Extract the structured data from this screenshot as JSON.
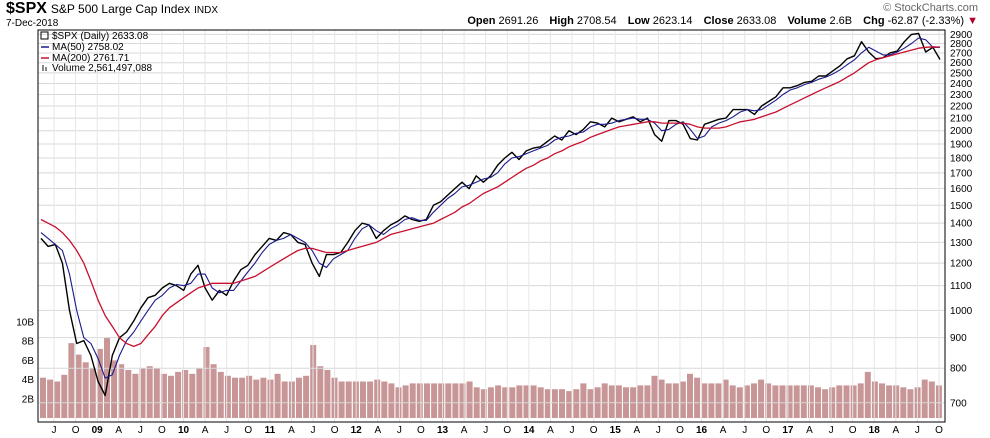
{
  "header": {
    "ticker": "$SPX",
    "description": "S&P 500 Large Cap Index",
    "exchange": "INDX",
    "date": "7-Dec-2018",
    "brand": "© StockCharts.com",
    "open_label": "Open",
    "open": "2691.26",
    "high_label": "High",
    "high": "2708.54",
    "low_label": "Low",
    "low": "2623.14",
    "close_label": "Close",
    "close": "2633.08",
    "volume_label": "Volume",
    "volume": "2.6B",
    "chg_label": "Chg",
    "chg": "-62.87 (-2.33%)"
  },
  "legend": {
    "price": "$SPX (Daily) 2633.08",
    "ma50": "MA(50) 2758.02",
    "ma200": "MA(200) 2761.71",
    "volume": "Volume 2,561,497,088"
  },
  "colors": {
    "price": "#000000",
    "ma50": "#1a1a8c",
    "ma200": "#c8102e",
    "volume": "#b57373",
    "down": "#b0002a"
  },
  "chart_data": {
    "type": "line",
    "title": "$SPX S&P 500 Large Cap Index",
    "scale": "log",
    "ylim": [
      650,
      2950
    ],
    "y_ticks": [
      700,
      800,
      900,
      1000,
      1100,
      1200,
      1300,
      1400,
      1500,
      1600,
      1700,
      1800,
      1900,
      2000,
      2100,
      2200,
      2300,
      2400,
      2500,
      2600,
      2700,
      2800,
      2900
    ],
    "x_ticks": [
      "J",
      "O",
      "09",
      "A",
      "J",
      "O",
      "10",
      "A",
      "J",
      "O",
      "11",
      "A",
      "J",
      "O",
      "12",
      "A",
      "J",
      "O",
      "13",
      "A",
      "J",
      "O",
      "14",
      "A",
      "J",
      "O",
      "15",
      "A",
      "J",
      "O",
      "16",
      "A",
      "J",
      "O",
      "17",
      "A",
      "J",
      "O",
      "18",
      "A",
      "J",
      "O"
    ],
    "x": [
      "2008-06",
      "2008-07",
      "2008-08",
      "2008-09",
      "2008-10",
      "2008-11",
      "2008-12",
      "2009-01",
      "2009-02",
      "2009-03",
      "2009-04",
      "2009-05",
      "2009-06",
      "2009-07",
      "2009-08",
      "2009-09",
      "2009-10",
      "2009-11",
      "2009-12",
      "2010-01",
      "2010-02",
      "2010-03",
      "2010-04",
      "2010-05",
      "2010-06",
      "2010-07",
      "2010-08",
      "2010-09",
      "2010-10",
      "2010-11",
      "2010-12",
      "2011-01",
      "2011-02",
      "2011-03",
      "2011-04",
      "2011-05",
      "2011-06",
      "2011-07",
      "2011-08",
      "2011-09",
      "2011-10",
      "2011-11",
      "2011-12",
      "2012-01",
      "2012-02",
      "2012-03",
      "2012-04",
      "2012-05",
      "2012-06",
      "2012-07",
      "2012-08",
      "2012-09",
      "2012-10",
      "2012-11",
      "2012-12",
      "2013-01",
      "2013-02",
      "2013-03",
      "2013-04",
      "2013-05",
      "2013-06",
      "2013-07",
      "2013-08",
      "2013-09",
      "2013-10",
      "2013-11",
      "2013-12",
      "2014-01",
      "2014-02",
      "2014-03",
      "2014-04",
      "2014-05",
      "2014-06",
      "2014-07",
      "2014-08",
      "2014-09",
      "2014-10",
      "2014-11",
      "2014-12",
      "2015-01",
      "2015-02",
      "2015-03",
      "2015-04",
      "2015-05",
      "2015-06",
      "2015-07",
      "2015-08",
      "2015-09",
      "2015-10",
      "2015-11",
      "2015-12",
      "2016-01",
      "2016-02",
      "2016-03",
      "2016-04",
      "2016-05",
      "2016-06",
      "2016-07",
      "2016-08",
      "2016-09",
      "2016-10",
      "2016-11",
      "2016-12",
      "2017-01",
      "2017-02",
      "2017-03",
      "2017-04",
      "2017-05",
      "2017-06",
      "2017-07",
      "2017-08",
      "2017-09",
      "2017-10",
      "2017-11",
      "2017-12",
      "2018-01",
      "2018-02",
      "2018-03",
      "2018-04",
      "2018-05",
      "2018-06",
      "2018-07",
      "2018-08",
      "2018-09",
      "2018-10",
      "2018-11",
      "2018-12"
    ],
    "series": [
      {
        "name": "$SPX (Daily)",
        "values": [
          1320,
          1280,
          1290,
          1200,
          1000,
          880,
          890,
          840,
          760,
          720,
          840,
          900,
          920,
          960,
          1010,
          1050,
          1060,
          1090,
          1110,
          1100,
          1080,
          1150,
          1190,
          1090,
          1040,
          1080,
          1060,
          1120,
          1170,
          1190,
          1240,
          1280,
          1320,
          1310,
          1350,
          1340,
          1300,
          1290,
          1200,
          1140,
          1240,
          1240,
          1250,
          1300,
          1360,
          1400,
          1390,
          1320,
          1360,
          1390,
          1410,
          1440,
          1420,
          1410,
          1420,
          1500,
          1520,
          1560,
          1600,
          1640,
          1600,
          1680,
          1640,
          1680,
          1750,
          1800,
          1840,
          1790,
          1850,
          1870,
          1880,
          1920,
          1960,
          1930,
          2000,
          1970,
          2010,
          2070,
          2060,
          2030,
          2100,
          2070,
          2090,
          2110,
          2070,
          2100,
          1970,
          1920,
          2080,
          2080,
          2050,
          1940,
          1930,
          2050,
          2070,
          2090,
          2100,
          2170,
          2170,
          2170,
          2130,
          2200,
          2240,
          2280,
          2360,
          2360,
          2380,
          2410,
          2420,
          2470,
          2470,
          2520,
          2570,
          2640,
          2670,
          2820,
          2710,
          2640,
          2650,
          2700,
          2720,
          2820,
          2900,
          2910,
          2710,
          2760,
          2633
        ]
      },
      {
        "name": "MA(50)",
        "values": [
          1350,
          1320,
          1290,
          1260,
          1150,
          1000,
          900,
          880,
          830,
          770,
          780,
          840,
          890,
          920,
          960,
          1000,
          1040,
          1060,
          1090,
          1105,
          1100,
          1110,
          1150,
          1150,
          1090,
          1070,
          1080,
          1080,
          1120,
          1160,
          1200,
          1250,
          1290,
          1310,
          1320,
          1340,
          1320,
          1300,
          1260,
          1200,
          1180,
          1220,
          1240,
          1260,
          1320,
          1370,
          1390,
          1360,
          1340,
          1370,
          1390,
          1420,
          1430,
          1415,
          1415,
          1460,
          1500,
          1540,
          1570,
          1610,
          1620,
          1640,
          1660,
          1670,
          1700,
          1760,
          1800,
          1810,
          1830,
          1850,
          1870,
          1890,
          1930,
          1950,
          1960,
          1980,
          1990,
          2030,
          2050,
          2050,
          2060,
          2080,
          2090,
          2100,
          2090,
          2090,
          2060,
          2000,
          2010,
          2050,
          2070,
          2010,
          1940,
          1960,
          2030,
          2060,
          2080,
          2110,
          2150,
          2170,
          2160,
          2170,
          2210,
          2250,
          2300,
          2340,
          2360,
          2390,
          2410,
          2440,
          2460,
          2490,
          2530,
          2580,
          2630,
          2700,
          2760,
          2720,
          2680,
          2680,
          2710,
          2750,
          2800,
          2860,
          2840,
          2760,
          2758
        ]
      },
      {
        "name": "MA(200)",
        "values": [
          1420,
          1400,
          1380,
          1350,
          1310,
          1260,
          1200,
          1120,
          1040,
          980,
          940,
          900,
          880,
          870,
          880,
          910,
          940,
          980,
          1010,
          1030,
          1050,
          1070,
          1090,
          1100,
          1110,
          1110,
          1110,
          1110,
          1120,
          1130,
          1140,
          1160,
          1180,
          1200,
          1220,
          1240,
          1260,
          1270,
          1270,
          1260,
          1250,
          1250,
          1250,
          1260,
          1270,
          1280,
          1290,
          1300,
          1320,
          1340,
          1350,
          1360,
          1370,
          1380,
          1390,
          1400,
          1420,
          1440,
          1460,
          1490,
          1510,
          1540,
          1570,
          1590,
          1610,
          1640,
          1670,
          1700,
          1730,
          1750,
          1780,
          1800,
          1830,
          1850,
          1880,
          1900,
          1920,
          1950,
          1970,
          1990,
          2010,
          2030,
          2040,
          2050,
          2060,
          2070,
          2070,
          2060,
          2060,
          2060,
          2060,
          2050,
          2030,
          2020,
          2020,
          2020,
          2030,
          2050,
          2070,
          2080,
          2090,
          2110,
          2130,
          2150,
          2180,
          2210,
          2240,
          2270,
          2300,
          2330,
          2360,
          2390,
          2420,
          2460,
          2500,
          2550,
          2600,
          2630,
          2650,
          2670,
          2690,
          2710,
          2730,
          2750,
          2760,
          2765,
          2762
        ]
      }
    ],
    "volume_axis_labels": [
      "2B",
      "4B",
      "6B",
      "8B",
      "10B"
    ],
    "volume_bars": [
      4.2,
      4.0,
      3.8,
      4.5,
      7.8,
      6.6,
      5.8,
      5.2,
      7.2,
      8.4,
      6.0,
      5.6,
      5.0,
      4.6,
      5.2,
      5.4,
      5.2,
      4.6,
      4.4,
      4.8,
      5.0,
      4.6,
      5.2,
      7.4,
      5.6,
      4.8,
      4.4,
      4.2,
      4.2,
      4.4,
      4.0,
      4.2,
      4.0,
      4.6,
      3.8,
      3.8,
      4.2,
      4.4,
      7.6,
      5.4,
      5.0,
      4.2,
      3.8,
      3.8,
      3.8,
      3.8,
      3.8,
      4.0,
      3.8,
      3.6,
      3.2,
      3.4,
      3.6,
      3.6,
      3.6,
      3.6,
      3.6,
      3.6,
      3.6,
      3.6,
      3.8,
      3.2,
      3.0,
      3.2,
      3.4,
      3.2,
      3.2,
      3.4,
      3.4,
      3.4,
      3.2,
      3.0,
      3.0,
      3.0,
      2.8,
      3.0,
      3.6,
      3.0,
      3.2,
      3.6,
      3.4,
      3.4,
      3.2,
      3.2,
      3.4,
      3.4,
      4.4,
      4.0,
      3.6,
      3.6,
      3.8,
      4.6,
      4.2,
      3.6,
      3.6,
      3.6,
      4.0,
      3.4,
      3.2,
      3.4,
      3.6,
      4.0,
      3.6,
      3.4,
      3.4,
      3.4,
      3.4,
      3.4,
      3.4,
      3.2,
      3.0,
      3.2,
      3.4,
      3.4,
      3.4,
      3.6,
      4.8,
      3.8,
      3.6,
      3.4,
      3.4,
      3.2,
      3.0,
      3.2,
      4.0,
      3.8,
      3.4
    ]
  }
}
